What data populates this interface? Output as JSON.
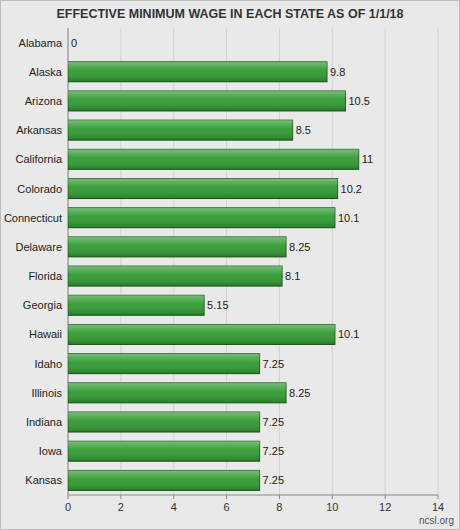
{
  "chart_data": {
    "type": "bar",
    "orientation": "horizontal",
    "title": "EFFECTIVE MINIMUM WAGE IN EACH STATE AS OF 1/1/18",
    "categories": [
      "Alabama",
      "Alaska",
      "Arizona",
      "Arkansas",
      "California",
      "Colorado",
      "Connecticut",
      "Delaware",
      "Florida",
      "Georgia",
      "Hawaii",
      "Idaho",
      "Illinois",
      "Indiana",
      "Iowa",
      "Kansas"
    ],
    "values": [
      0,
      9.8,
      10.5,
      8.5,
      11,
      10.2,
      10.1,
      8.25,
      8.1,
      5.15,
      10.1,
      7.25,
      8.25,
      7.25,
      7.25,
      7.25
    ],
    "color": "#2f9a2f",
    "xlim": [
      0,
      14
    ],
    "xticks": [
      0,
      2,
      4,
      6,
      8,
      10,
      12,
      14
    ],
    "grid": true,
    "data_labels": true,
    "annotations": [
      "ncsl.org"
    ]
  }
}
